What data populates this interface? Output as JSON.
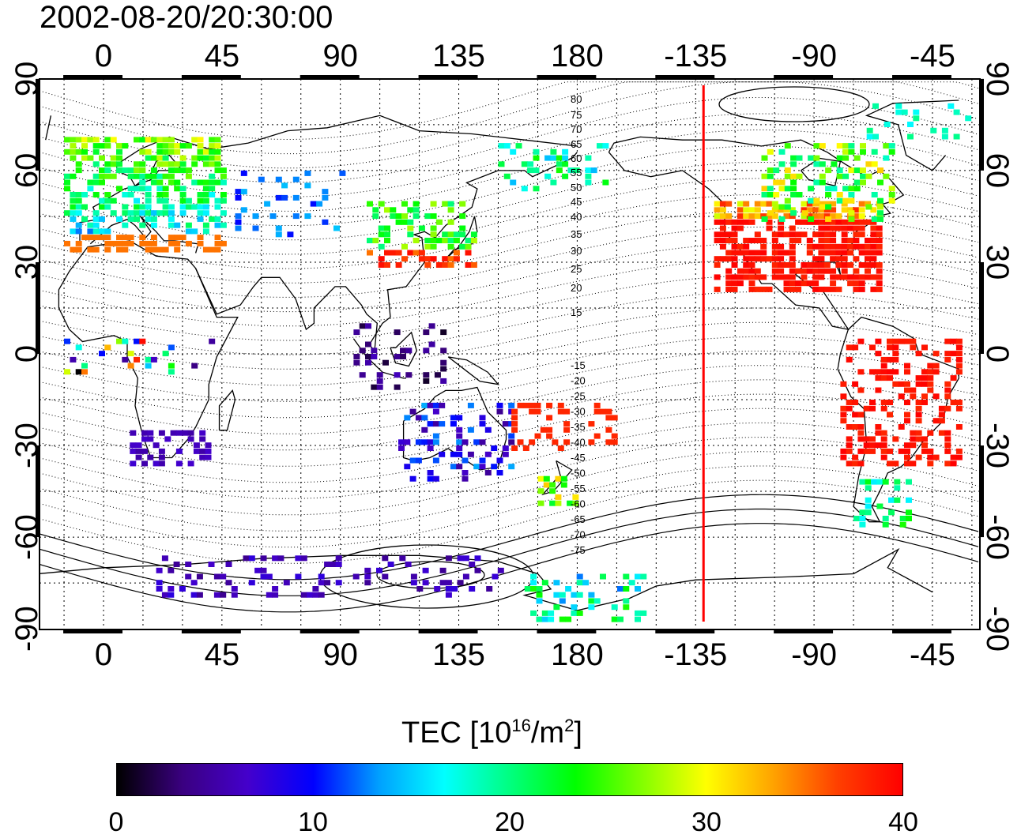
{
  "timestamp": "2002-08-20/20:30:00",
  "colorbar": {
    "title": "TEC  [10",
    "title_exp": "16",
    "title_unit": "/m",
    "title_unit_exp": "2",
    "title_close": "]",
    "min": 0,
    "max": 40,
    "tick_labels": [
      "0",
      "10",
      "20",
      "30",
      "40"
    ],
    "colors": [
      "#000000",
      "#3a0080",
      "#4400cc",
      "#0000ff",
      "#00a0ff",
      "#00ffff",
      "#00ff80",
      "#00ff00",
      "#80ff00",
      "#ffff00",
      "#ffa500",
      "#ff4000",
      "#ff0000"
    ]
  },
  "axes": {
    "lon_labels": [
      "0",
      "45",
      "90",
      "135",
      "180",
      "-135",
      "-90",
      "-45"
    ],
    "lat_labels": [
      "90",
      "60",
      "30",
      "0",
      "-30",
      "-60",
      "-90"
    ]
  },
  "contours": {
    "labels": [
      "80",
      "75",
      "70",
      "65",
      "60",
      "55",
      "50",
      "45",
      "40",
      "35",
      "30",
      "25",
      "20",
      "15",
      "-15",
      "-20",
      "-25",
      "-30",
      "-35",
      "-40",
      "-45",
      "-50",
      "-55",
      "-60",
      "-65",
      "-70",
      "-75"
    ]
  },
  "terminator": {
    "longitude": -132,
    "color": "#ff0000"
  }
}
